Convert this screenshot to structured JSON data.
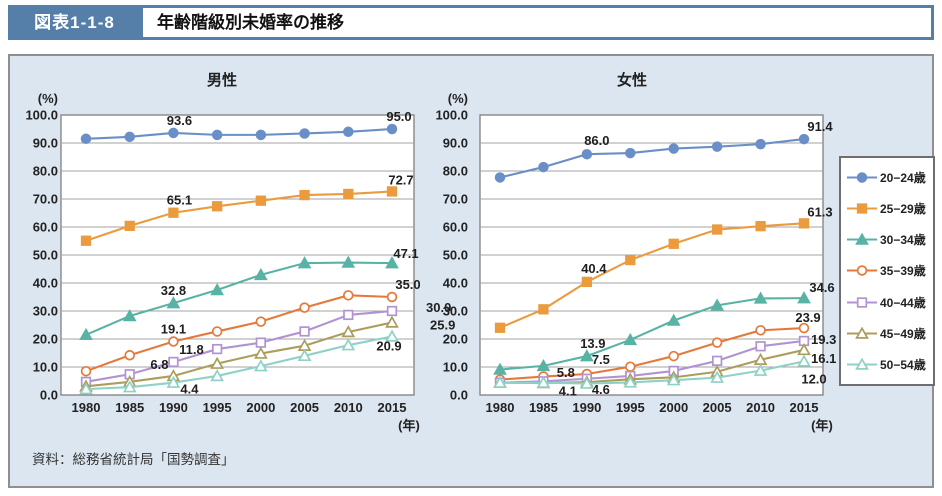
{
  "header": {
    "badge": "図表1-1-8",
    "title": "年齢階級別未婚率の推移"
  },
  "source": "資料：総務省統計局「国勢調査」",
  "colors": {
    "header_band": "#557fa9",
    "panel_bg": "#dce6f0",
    "plot_bg": "#ffffff",
    "grid": "#a3a3a3",
    "plot_border": "#7f7f7f",
    "text": "#222222"
  },
  "legend": {
    "position": "right",
    "items": [
      {
        "label": "20−24歳",
        "color": "#6a8fc7",
        "marker": "circle",
        "fill": "solid"
      },
      {
        "label": "25−29歳",
        "color": "#eb9b3e",
        "marker": "square",
        "fill": "solid"
      },
      {
        "label": "30−34歳",
        "color": "#58b3a5",
        "marker": "triangle",
        "fill": "solid"
      },
      {
        "label": "35−39歳",
        "color": "#e5793a",
        "marker": "circle",
        "fill": "open"
      },
      {
        "label": "40−44歳",
        "color": "#b193d1",
        "marker": "square",
        "fill": "open"
      },
      {
        "label": "45−49歳",
        "color": "#ab9e5d",
        "marker": "triangle",
        "fill": "open"
      },
      {
        "label": "50−54歳",
        "color": "#8fd1c6",
        "marker": "triangle",
        "fill": "open"
      }
    ]
  },
  "chart_data": [
    {
      "type": "line",
      "title": "男性",
      "y_unit": "(%)",
      "x_unit": "(年)",
      "x": [
        1980,
        1985,
        1990,
        1995,
        2000,
        2005,
        2010,
        2015
      ],
      "ylim": [
        0,
        100
      ],
      "ytick_step": 10,
      "grid": true,
      "series": [
        {
          "name": "20-24歳",
          "values": [
            91.5,
            92.2,
            93.6,
            92.9,
            92.9,
            93.4,
            94.0,
            95.0
          ],
          "labels": [
            [
              2,
              "93.6",
              6,
              -8
            ],
            [
              7,
              "95.0",
              7,
              -8
            ]
          ]
        },
        {
          "name": "25-29歳",
          "values": [
            55.1,
            60.4,
            65.1,
            67.4,
            69.4,
            71.4,
            71.8,
            72.7
          ],
          "labels": [
            [
              2,
              "65.1",
              6,
              -8
            ],
            [
              7,
              "72.7",
              9,
              -7
            ]
          ]
        },
        {
          "name": "30-34歳",
          "values": [
            21.5,
            28.2,
            32.8,
            37.5,
            42.9,
            47.1,
            47.3,
            47.1
          ],
          "labels": [
            [
              2,
              "32.8",
              0,
              -8
            ],
            [
              7,
              "47.1",
              14,
              -5
            ]
          ]
        },
        {
          "name": "35-39歳",
          "values": [
            8.5,
            14.2,
            19.1,
            22.7,
            26.2,
            31.2,
            35.6,
            35.0
          ],
          "labels": [
            [
              2,
              "19.1",
              0,
              -8
            ],
            [
              7,
              "35.0",
              16,
              -8
            ]
          ]
        },
        {
          "name": "40-44歳",
          "values": [
            4.7,
            7.4,
            11.8,
            16.4,
            18.7,
            22.7,
            28.6,
            30.0
          ],
          "labels": [
            [
              2,
              "11.8",
              18,
              -8
            ],
            [
              7,
              "30.0",
              34,
              1,
              "start"
            ]
          ]
        },
        {
          "name": "45-49歳",
          "values": [
            3.1,
            4.7,
            6.8,
            11.2,
            14.8,
            17.6,
            22.5,
            25.9
          ],
          "labels": [
            [
              2,
              "6.8",
              -14,
              -7
            ],
            [
              7,
              "25.9",
              38,
              7,
              "start"
            ]
          ]
        },
        {
          "name": "50-54歳",
          "values": [
            2.1,
            2.8,
            4.4,
            6.8,
            10.3,
            14.0,
            17.8,
            20.9
          ],
          "labels": [
            [
              2,
              "4.4",
              16,
              11
            ],
            [
              7,
              "20.9",
              -3,
              14
            ]
          ]
        }
      ]
    },
    {
      "type": "line",
      "title": "女性",
      "y_unit": "(%)",
      "x_unit": "(年)",
      "x": [
        1980,
        1985,
        1990,
        1995,
        2000,
        2005,
        2010,
        2015
      ],
      "ylim": [
        0,
        100
      ],
      "ytick_step": 10,
      "grid": true,
      "series": [
        {
          "name": "20-24歳",
          "values": [
            77.7,
            81.4,
            86.0,
            86.4,
            88.0,
            88.7,
            89.6,
            91.4
          ],
          "labels": [
            [
              2,
              "86.0",
              10,
              -9
            ],
            [
              7,
              "91.4",
              16,
              -8
            ]
          ]
        },
        {
          "name": "25-29歳",
          "values": [
            24.0,
            30.6,
            40.4,
            48.2,
            54.0,
            59.1,
            60.3,
            61.3
          ],
          "labels": [
            [
              2,
              "40.4",
              7,
              -9
            ],
            [
              7,
              "61.3",
              16,
              -7
            ]
          ]
        },
        {
          "name": "30-34歳",
          "values": [
            9.1,
            10.4,
            13.9,
            19.7,
            26.6,
            32.0,
            34.5,
            34.6
          ],
          "labels": [
            [
              2,
              "13.9",
              6,
              -8
            ],
            [
              7,
              "34.6",
              18,
              -6
            ]
          ]
        },
        {
          "name": "35-39歳",
          "values": [
            5.5,
            6.6,
            7.5,
            10.1,
            13.9,
            18.7,
            23.1,
            23.9
          ],
          "labels": [
            [
              2,
              "7.5",
              14,
              -10
            ],
            [
              7,
              "23.9",
              4,
              -6
            ]
          ]
        },
        {
          "name": "40-44歳",
          "values": [
            4.4,
            4.9,
            5.8,
            6.8,
            8.6,
            12.2,
            17.4,
            19.3
          ],
          "labels": [
            [
              2,
              "5.8",
              -12,
              -2,
              "end"
            ],
            [
              7,
              "19.3",
              7,
              3,
              "start"
            ]
          ]
        },
        {
          "name": "45-49歳",
          "values": [
            4.4,
            4.3,
            4.6,
            5.6,
            6.3,
            8.3,
            12.6,
            16.1
          ],
          "labels": [
            [
              2,
              "4.6",
              14,
              12
            ],
            [
              7,
              "16.1",
              7,
              13,
              "start"
            ]
          ]
        },
        {
          "name": "50-54歳",
          "values": [
            4.4,
            4.4,
            4.1,
            4.5,
            5.3,
            6.2,
            8.7,
            12.0
          ],
          "labels": [
            [
              2,
              "4.1",
              -10,
              12,
              "end"
            ],
            [
              7,
              "12.0",
              10,
              22
            ]
          ]
        }
      ]
    }
  ]
}
